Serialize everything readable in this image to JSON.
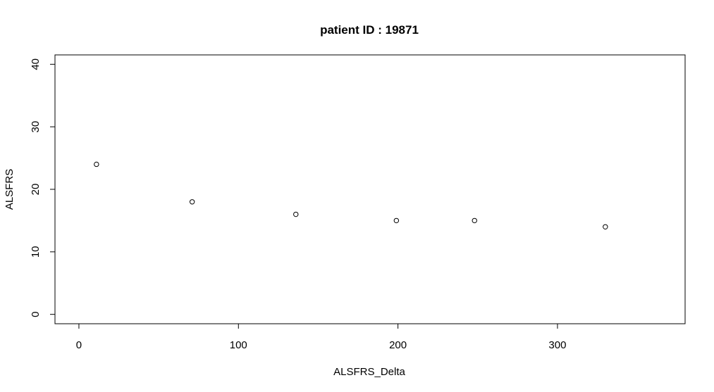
{
  "chart_data": {
    "type": "scatter",
    "title": "patient ID : 19871",
    "xlabel": "ALSFRS_Delta",
    "ylabel": "ALSFRS",
    "xlim": [
      -15,
      380
    ],
    "ylim": [
      -1.5,
      41.5
    ],
    "xticks": [
      0,
      100,
      200,
      300
    ],
    "yticks": [
      0,
      10,
      20,
      30,
      40
    ],
    "grid": false,
    "legend": "none",
    "marker": "open-circle",
    "point_color": "#000000",
    "points": [
      {
        "x": 11,
        "y": 24
      },
      {
        "x": 71,
        "y": 18
      },
      {
        "x": 136,
        "y": 16
      },
      {
        "x": 199,
        "y": 15
      },
      {
        "x": 248,
        "y": 15
      },
      {
        "x": 330,
        "y": 14
      }
    ]
  }
}
